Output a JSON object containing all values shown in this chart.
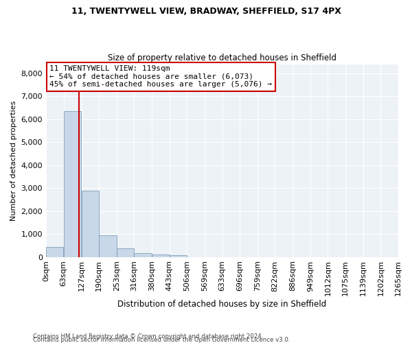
{
  "title_line1": "11, TWENTYWELL VIEW, BRADWAY, SHEFFIELD, S17 4PX",
  "title_line2": "Size of property relative to detached houses in Sheffield",
  "xlabel": "Distribution of detached houses by size in Sheffield",
  "ylabel": "Number of detached properties",
  "footer_line1": "Contains HM Land Registry data © Crown copyright and database right 2024.",
  "footer_line2": "Contains public sector information licensed under the Open Government Licence v3.0.",
  "annotation_line1": "11 TWENTYWELL VIEW: 119sqm",
  "annotation_line2": "← 54% of detached houses are smaller (6,073)",
  "annotation_line3": "45% of semi-detached houses are larger (5,076) →",
  "property_size": 119,
  "bar_bins": [
    0,
    63,
    127,
    190,
    253,
    316,
    380,
    443,
    506,
    569,
    633,
    696,
    759,
    822,
    886,
    949,
    1012,
    1075,
    1139,
    1202,
    1265
  ],
  "bar_heights": [
    430,
    6350,
    2900,
    950,
    390,
    160,
    120,
    80,
    0,
    0,
    0,
    0,
    0,
    0,
    0,
    0,
    0,
    0,
    0,
    0
  ],
  "bar_color": "#c8d8e8",
  "bar_edge_color": "#7090b0",
  "vline_color": "#cc0000",
  "vline_x": 119,
  "annotation_box_color": "#cc0000",
  "background_color": "#edf2f7",
  "ylim": [
    0,
    8400
  ],
  "yticks": [
    0,
    1000,
    2000,
    3000,
    4000,
    5000,
    6000,
    7000,
    8000
  ],
  "tick_labels": [
    "0sqm",
    "63sqm",
    "127sqm",
    "190sqm",
    "253sqm",
    "316sqm",
    "380sqm",
    "443sqm",
    "506sqm",
    "569sqm",
    "633sqm",
    "696sqm",
    "759sqm",
    "822sqm",
    "886sqm",
    "949sqm",
    "1012sqm",
    "1075sqm",
    "1139sqm",
    "1202sqm",
    "1265sqm"
  ]
}
